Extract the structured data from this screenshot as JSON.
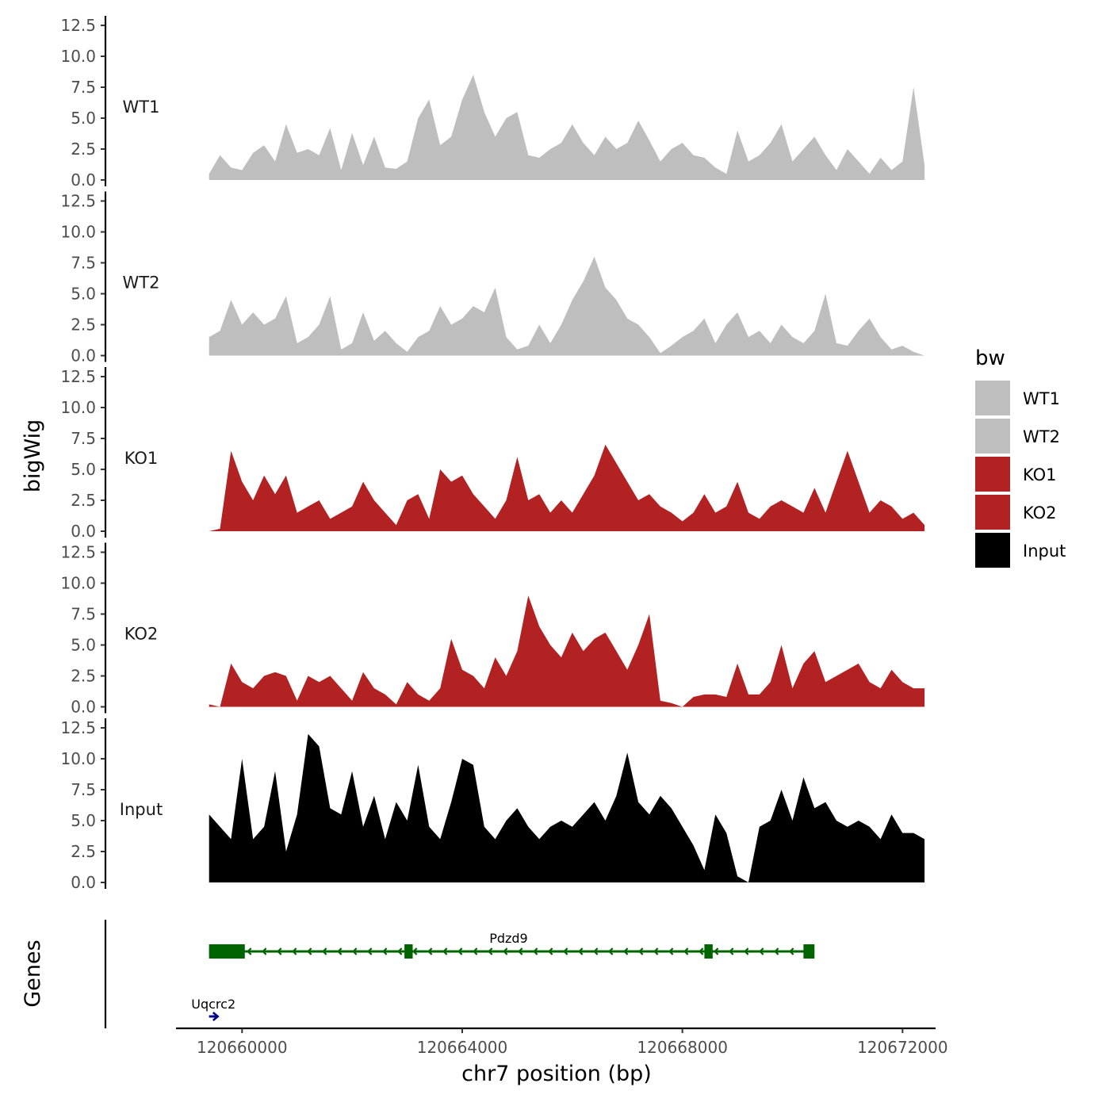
{
  "chart_data": {
    "type": "area",
    "title": "",
    "xlabel": "chr7 position (bp)",
    "ylabel": "bigWig",
    "genes_label": "Genes",
    "xlim": [
      120658800,
      120672600
    ],
    "xticks": [
      120660000,
      120664000,
      120668000,
      120672000
    ],
    "xtick_labels": [
      "120660000",
      "120664000",
      "120668000",
      "120672000"
    ],
    "ylim": [
      0,
      12.5
    ],
    "yticks": [
      0,
      2.5,
      5,
      7.5,
      10,
      12.5
    ],
    "ytick_labels": [
      "0.0",
      "2.5",
      "5.0",
      "7.5",
      "10.0",
      "12.5"
    ],
    "legend": {
      "title": "bw",
      "position": "right",
      "entries": [
        {
          "name": "WT1",
          "color": "#bebebe"
        },
        {
          "name": "WT2",
          "color": "#bebebe"
        },
        {
          "name": "KO1",
          "color": "#b22222"
        },
        {
          "name": "KO2",
          "color": "#b22222"
        },
        {
          "name": "Input",
          "color": "#000000"
        }
      ]
    },
    "series": [
      {
        "name": "WT1",
        "color": "#bebebe",
        "x": [
          120659400,
          120659600,
          120659800,
          120660000,
          120660200,
          120660400,
          120660600,
          120660800,
          120661000,
          120661200,
          120661400,
          120661600,
          120661800,
          120662000,
          120662200,
          120662400,
          120662600,
          120662800,
          120663000,
          120663200,
          120663400,
          120663600,
          120663800,
          120664000,
          120664200,
          120664400,
          120664600,
          120664800,
          120665000,
          120665200,
          120665400,
          120665600,
          120665800,
          120666000,
          120666200,
          120666400,
          120666600,
          120666800,
          120667000,
          120667200,
          120667400,
          120667600,
          120667800,
          120668000,
          120668200,
          120668400,
          120668600,
          120668800,
          120669000,
          120669200,
          120669400,
          120669600,
          120669800,
          120670000,
          120670200,
          120670400,
          120670600,
          120670800,
          120671000,
          120671200,
          120671400,
          120671600,
          120671800,
          120672000,
          120672200,
          120672400
        ],
        "values": [
          0.5,
          2.0,
          1.0,
          0.8,
          2.2,
          2.8,
          1.5,
          4.5,
          2.2,
          2.5,
          2.0,
          4.2,
          0.8,
          3.8,
          1.2,
          3.5,
          1.0,
          0.9,
          1.5,
          5.0,
          6.5,
          2.8,
          3.5,
          6.5,
          8.5,
          5.5,
          3.5,
          5.0,
          5.5,
          2.0,
          1.8,
          2.5,
          3.0,
          4.5,
          3.0,
          2.0,
          3.5,
          2.5,
          3.0,
          4.8,
          3.2,
          1.5,
          2.5,
          3.0,
          2.0,
          1.8,
          1.0,
          0.5,
          4.0,
          1.5,
          2.0,
          3.0,
          4.5,
          1.5,
          2.5,
          3.5,
          2.0,
          0.8,
          2.5,
          1.5,
          0.5,
          1.8,
          0.8,
          1.5,
          7.5,
          1.2
        ]
      },
      {
        "name": "WT2",
        "color": "#bebebe",
        "x": [
          120659400,
          120659600,
          120659800,
          120660000,
          120660200,
          120660400,
          120660600,
          120660800,
          120661000,
          120661200,
          120661400,
          120661600,
          120661800,
          120662000,
          120662200,
          120662400,
          120662600,
          120662800,
          120663000,
          120663200,
          120663400,
          120663600,
          120663800,
          120664000,
          120664200,
          120664400,
          120664600,
          120664800,
          120665000,
          120665200,
          120665400,
          120665600,
          120665800,
          120666000,
          120666200,
          120666400,
          120666600,
          120666800,
          120667000,
          120667200,
          120667400,
          120667600,
          120667800,
          120668000,
          120668200,
          120668400,
          120668600,
          120668800,
          120669000,
          120669200,
          120669400,
          120669600,
          120669800,
          120670000,
          120670200,
          120670400,
          120670600,
          120670800,
          120671000,
          120671200,
          120671400,
          120671600,
          120671800,
          120672000,
          120672200,
          120672400
        ],
        "values": [
          1.5,
          2.0,
          4.5,
          2.5,
          3.5,
          2.5,
          3.0,
          4.8,
          1.0,
          1.5,
          2.5,
          4.8,
          0.5,
          1.0,
          3.5,
          1.2,
          2.0,
          1.0,
          0.3,
          1.5,
          2.0,
          4.0,
          2.5,
          3.0,
          4.0,
          3.5,
          5.5,
          1.5,
          0.5,
          0.8,
          2.5,
          1.0,
          2.5,
          4.5,
          6.0,
          8.0,
          5.5,
          4.5,
          3.0,
          2.5,
          1.5,
          0.2,
          0.8,
          1.5,
          2.0,
          3.0,
          1.0,
          2.5,
          3.5,
          1.5,
          2.0,
          1.0,
          2.5,
          1.5,
          1.0,
          2.0,
          5.0,
          1.0,
          0.8,
          2.0,
          3.0,
          1.5,
          0.5,
          0.8,
          0.3,
          0.0
        ]
      },
      {
        "name": "KO1",
        "color": "#b22222",
        "x": [
          120659400,
          120659600,
          120659800,
          120660000,
          120660200,
          120660400,
          120660600,
          120660800,
          120661000,
          120661200,
          120661400,
          120661600,
          120661800,
          120662000,
          120662200,
          120662400,
          120662600,
          120662800,
          120663000,
          120663200,
          120663400,
          120663600,
          120663800,
          120664000,
          120664200,
          120664400,
          120664600,
          120664800,
          120665000,
          120665200,
          120665400,
          120665600,
          120665800,
          120666000,
          120666200,
          120666400,
          120666600,
          120666800,
          120667000,
          120667200,
          120667400,
          120667600,
          120667800,
          120668000,
          120668200,
          120668400,
          120668600,
          120668800,
          120669000,
          120669200,
          120669400,
          120669600,
          120669800,
          120670000,
          120670200,
          120670400,
          120670600,
          120670800,
          120671000,
          120671200,
          120671400,
          120671600,
          120671800,
          120672000,
          120672200,
          120672400
        ],
        "values": [
          0.0,
          0.2,
          6.5,
          4.0,
          2.5,
          4.5,
          3.0,
          4.5,
          1.5,
          2.0,
          2.5,
          1.0,
          1.5,
          2.0,
          4.0,
          2.5,
          1.5,
          0.5,
          2.5,
          3.0,
          1.0,
          5.0,
          4.0,
          4.5,
          3.0,
          2.0,
          1.0,
          2.5,
          6.0,
          2.5,
          3.0,
          1.5,
          2.5,
          1.5,
          3.0,
          4.5,
          7.0,
          5.5,
          4.0,
          2.5,
          3.0,
          2.0,
          1.5,
          0.8,
          1.5,
          3.0,
          1.5,
          2.0,
          4.0,
          1.5,
          1.0,
          2.0,
          2.5,
          2.0,
          1.5,
          3.5,
          1.5,
          4.0,
          6.5,
          4.0,
          1.5,
          2.5,
          2.0,
          1.0,
          1.5,
          0.5
        ]
      },
      {
        "name": "KO2",
        "color": "#b22222",
        "x": [
          120659400,
          120659600,
          120659800,
          120660000,
          120660200,
          120660400,
          120660600,
          120660800,
          120661000,
          120661200,
          120661400,
          120661600,
          120661800,
          120662000,
          120662200,
          120662400,
          120662600,
          120662800,
          120663000,
          120663200,
          120663400,
          120663600,
          120663800,
          120664000,
          120664200,
          120664400,
          120664600,
          120664800,
          120665000,
          120665200,
          120665400,
          120665600,
          120665800,
          120666000,
          120666200,
          120666400,
          120666600,
          120666800,
          120667000,
          120667200,
          120667400,
          120667600,
          120667800,
          120668000,
          120668200,
          120668400,
          120668600,
          120668800,
          120669000,
          120669200,
          120669400,
          120669600,
          120669800,
          120670000,
          120670200,
          120670400,
          120670600,
          120670800,
          120671000,
          120671200,
          120671400,
          120671600,
          120671800,
          120672000,
          120672200,
          120672400
        ],
        "values": [
          0.2,
          0.0,
          3.5,
          2.0,
          1.5,
          2.5,
          2.8,
          2.5,
          0.5,
          2.5,
          2.0,
          2.5,
          1.5,
          0.5,
          2.8,
          1.5,
          1.0,
          0.2,
          2.0,
          1.0,
          0.5,
          1.5,
          5.5,
          3.0,
          2.5,
          1.5,
          4.0,
          2.5,
          4.5,
          9.0,
          6.5,
          5.0,
          4.0,
          6.0,
          4.5,
          5.5,
          6.0,
          4.5,
          3.0,
          5.0,
          7.5,
          0.5,
          0.3,
          0.0,
          0.8,
          1.0,
          1.0,
          0.8,
          3.5,
          1.0,
          1.0,
          2.0,
          5.0,
          1.5,
          3.5,
          4.5,
          2.0,
          2.5,
          3.0,
          3.5,
          2.0,
          1.5,
          3.0,
          2.0,
          1.5,
          1.5
        ]
      },
      {
        "name": "Input",
        "color": "#000000",
        "x": [
          120659400,
          120659600,
          120659800,
          120660000,
          120660200,
          120660400,
          120660600,
          120660800,
          120661000,
          120661200,
          120661400,
          120661600,
          120661800,
          120662000,
          120662200,
          120662400,
          120662600,
          120662800,
          120663000,
          120663200,
          120663400,
          120663600,
          120663800,
          120664000,
          120664200,
          120664400,
          120664600,
          120664800,
          120665000,
          120665200,
          120665400,
          120665600,
          120665800,
          120666000,
          120666200,
          120666400,
          120666600,
          120666800,
          120667000,
          120667200,
          120667400,
          120667600,
          120667800,
          120668000,
          120668200,
          120668400,
          120668600,
          120668800,
          120669000,
          120669200,
          120669400,
          120669600,
          120669800,
          120670000,
          120670200,
          120670400,
          120670600,
          120670800,
          120671000,
          120671200,
          120671400,
          120671600,
          120671800,
          120672000,
          120672200,
          120672400
        ],
        "values": [
          5.5,
          4.5,
          3.5,
          10.0,
          3.5,
          4.5,
          9.0,
          2.5,
          5.5,
          12.0,
          11.0,
          6.0,
          5.5,
          9.0,
          4.5,
          7.0,
          3.5,
          6.5,
          5.0,
          9.5,
          4.5,
          3.5,
          6.5,
          10.0,
          9.5,
          4.5,
          3.5,
          5.0,
          6.0,
          4.5,
          3.5,
          4.5,
          5.0,
          4.5,
          5.5,
          6.5,
          5.0,
          7.0,
          10.5,
          6.5,
          5.5,
          7.0,
          6.0,
          4.5,
          3.0,
          1.0,
          5.5,
          4.0,
          0.5,
          0.0,
          4.5,
          5.0,
          7.5,
          5.0,
          8.5,
          6.0,
          6.5,
          5.0,
          4.5,
          5.0,
          4.5,
          3.5,
          5.5,
          4.0,
          4.0,
          3.5
        ]
      }
    ],
    "genes": [
      {
        "name": "Pdzd9",
        "start": 120659400,
        "end": 120670400,
        "strand": "-",
        "color": "#006400",
        "exons": [
          [
            120659400,
            120660050
          ],
          [
            120662950,
            120663100
          ],
          [
            120668400,
            120668550
          ],
          [
            120670200,
            120670400
          ]
        ]
      },
      {
        "name": "Uqcrc2",
        "start": 120659400,
        "end": 120659560,
        "strand": "+",
        "color": "#00008b",
        "exons": []
      }
    ]
  }
}
